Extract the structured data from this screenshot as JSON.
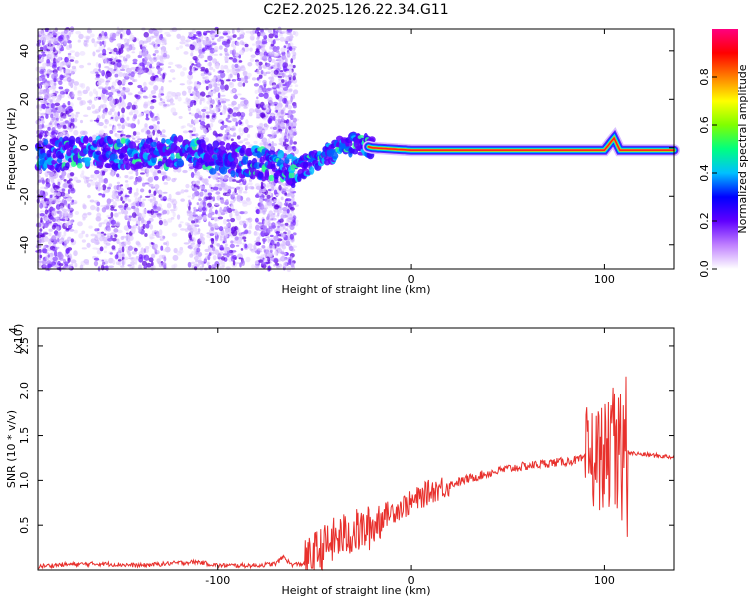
{
  "chart_data": [
    {
      "type": "heatmap",
      "title": "C2E2.2025.126.22.34.G11",
      "xlabel": "Height of straight line (km)",
      "ylabel": "Frequency (Hz)",
      "xlim": [
        -193,
        136
      ],
      "ylim": [
        -50,
        49
      ],
      "xticks": [
        -100,
        0,
        100
      ],
      "xtick_labels": [
        "-100",
        "0",
        "100"
      ],
      "yticks": [
        -40,
        -20,
        0,
        20,
        40
      ],
      "ytick_labels": [
        "-40",
        "-20",
        "0",
        "20",
        "40"
      ],
      "colorbar": {
        "label": "Normalized spectral amplitude",
        "range": [
          0,
          1
        ],
        "ticks": [
          0.0,
          0.2,
          0.4,
          0.6,
          0.8
        ],
        "tick_labels": [
          "0.0",
          "0.2",
          "0.4",
          "0.6",
          "0.8"
        ],
        "colors": [
          "#ffffff",
          "#c080ff",
          "#6000ff",
          "#0000ff",
          "#00c0ff",
          "#00ff80",
          "#80ff00",
          "#ffff00",
          "#ff8000",
          "#ff0000",
          "#ff0080"
        ]
      },
      "features": {
        "noise_region_x": [
          -193,
          -59
        ],
        "broadband_bands_x": [
          [
            -193,
            -175
          ],
          [
            -163,
            -127
          ],
          [
            -115,
            -85
          ],
          [
            -80,
            -60
          ]
        ],
        "signal_line": [
          [
            -193,
            -3
          ],
          [
            -160,
            -2
          ],
          [
            -120,
            -2
          ],
          [
            -80,
            -6
          ],
          [
            -60,
            -10
          ],
          [
            -50,
            -5
          ],
          [
            -40,
            -1
          ],
          [
            -30,
            2
          ],
          [
            -20,
            0
          ],
          [
            0,
            -1
          ],
          [
            50,
            -1
          ],
          [
            100,
            -1
          ],
          [
            105,
            4
          ],
          [
            108,
            -1
          ],
          [
            136,
            -1
          ]
        ]
      },
      "grid": false,
      "legend": "none"
    },
    {
      "type": "line",
      "title": "",
      "xlabel": "Height of straight line (km)",
      "ylabel": "SNR (10 * v/v)",
      "multiplier_label": "(x10",
      "multiplier_exponent": "4",
      "xlim": [
        -193,
        136
      ],
      "ylim": [
        0,
        27000
      ],
      "xticks": [
        -100,
        0,
        100
      ],
      "xtick_labels": [
        "-100",
        "0",
        "100"
      ],
      "yticks": [
        5000,
        10000,
        15000,
        20000,
        25000
      ],
      "ytick_labels": [
        "0.5",
        "1.0",
        "1.5",
        "2.0",
        "2.5"
      ],
      "series": [
        {
          "color": "#e8302c",
          "x": [
            -193,
            -180,
            -160,
            -140,
            -120,
            -110,
            -100,
            -80,
            -70,
            -66,
            -62,
            -55,
            -50,
            -45,
            -40,
            -35,
            -30,
            -25,
            -20,
            -15,
            -10,
            -5,
            0,
            10,
            20,
            30,
            40,
            50,
            60,
            70,
            80,
            90,
            95,
            100,
            105,
            108,
            110,
            112,
            115,
            120,
            125,
            130,
            136
          ],
          "y": [
            400,
            600,
            700,
            500,
            800,
            900,
            500,
            500,
            700,
            1500,
            600,
            700,
            1800,
            2500,
            3300,
            3800,
            4200,
            4400,
            4800,
            6000,
            6500,
            7000,
            7500,
            8800,
            9500,
            10200,
            10800,
            11300,
            11600,
            11900,
            12100,
            12400,
            12500,
            12800,
            12700,
            12900,
            12600,
            13200,
            13000,
            12900,
            12800,
            12700,
            12600
          ]
        }
      ],
      "grid": false,
      "legend": "none"
    }
  ]
}
